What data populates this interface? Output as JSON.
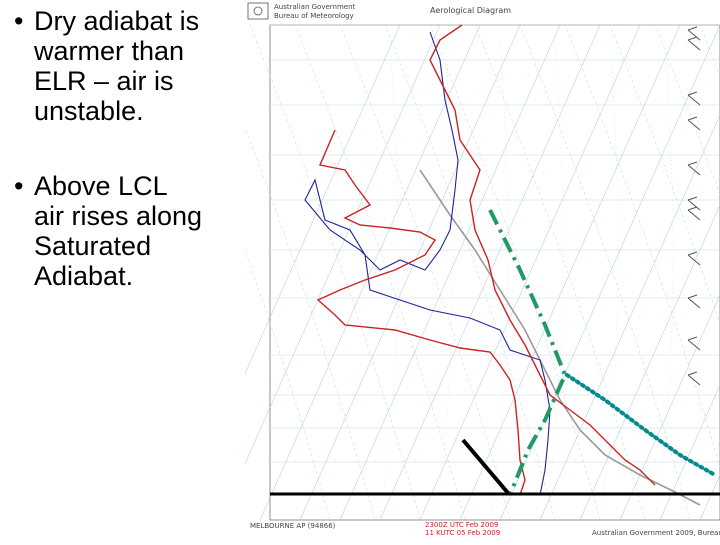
{
  "bullets": [
    {
      "text": "Dry adiabat is\nwarmer than\nELR – air is\nunstable."
    },
    {
      "text": "Above LCL\nair rises along\nSaturated\nAdiabat."
    }
  ],
  "diagram": {
    "header_agency_1": "Australian Government",
    "header_agency_2": "Bureau of Meteorology",
    "header_title": "Aerological Diagram",
    "footer_station": "MELBOURNE AP (94866)",
    "footer_time": "2300Z UTC Feb 2009",
    "footer_time_2": "11 KUTC 05 Feb 2009",
    "footer_copyright": "Australian Government 2009, Bureau",
    "colors": {
      "temperature": "#cc2222",
      "dewpoint": "#22229a",
      "grid": "#9fc7dd",
      "dry_adiabat_path": "#008a8a",
      "saturated_adiabat_path": "#1f9a62",
      "surface_marker": "#000000"
    }
  }
}
